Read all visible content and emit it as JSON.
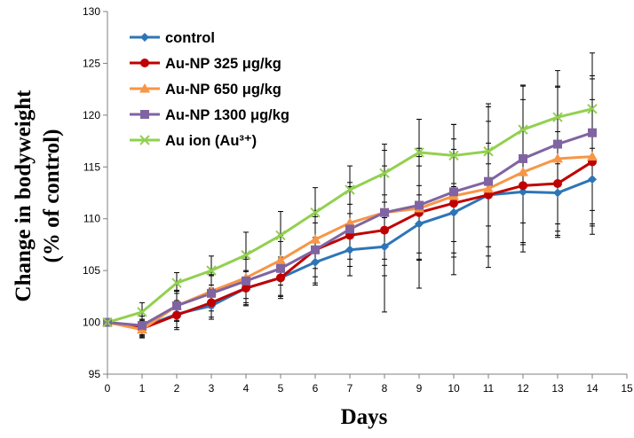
{
  "chart_data": {
    "type": "line",
    "xlabel": "Days",
    "ylabel_line1": "Change in bodyweight",
    "ylabel_line2": "(% of control)",
    "xlim": [
      0,
      15
    ],
    "ylim": [
      95,
      130
    ],
    "x_ticks": [
      "0",
      "1",
      "2",
      "3",
      "4",
      "5",
      "6",
      "7",
      "8",
      "9",
      "10",
      "11",
      "12",
      "13",
      "14",
      "15"
    ],
    "y_ticks": [
      "95",
      "100",
      "105",
      "110",
      "115",
      "120",
      "125",
      "130"
    ],
    "grid": false,
    "legend_position": "top-left",
    "x": [
      0,
      1,
      2,
      3,
      4,
      5,
      6,
      7,
      8,
      9,
      10,
      11,
      12,
      13,
      14
    ],
    "series": [
      {
        "name": "control",
        "color": "#2e75b6",
        "marker": "diamond",
        "values": [
          100.0,
          99.5,
          100.8,
          101.6,
          103.3,
          104.3,
          105.8,
          107.0,
          107.3,
          109.5,
          110.6,
          112.3,
          112.6,
          112.5,
          113.8
        ],
        "err_upper": [
          0,
          0.8,
          1.3,
          1.3,
          1.6,
          1.8,
          2.2,
          2.5,
          2.8,
          2.8,
          2.8,
          3.0,
          3.0,
          3.0,
          3.0
        ],
        "err_lower": [
          0,
          0.8,
          1.3,
          1.3,
          1.6,
          1.8,
          2.2,
          2.5,
          2.8,
          2.8,
          2.8,
          3.0,
          3.0,
          3.0,
          3.0
        ]
      },
      {
        "name": "Au-NP 325 μg/kg",
        "color": "#c00000",
        "marker": "circle",
        "values": [
          100.0,
          99.4,
          100.7,
          101.9,
          103.3,
          104.3,
          107.0,
          108.4,
          108.9,
          110.6,
          111.5,
          112.3,
          113.2,
          113.4,
          115.5
        ],
        "err_upper": [
          0,
          0.8,
          1.4,
          1.4,
          1.7,
          2.0,
          2.6,
          3.0,
          3.4,
          4.5,
          5.2,
          5.0,
          5.5,
          5.0,
          6.0
        ],
        "err_lower": [
          0,
          0.8,
          1.4,
          1.4,
          1.7,
          2.0,
          2.6,
          3.0,
          3.4,
          4.5,
          5.2,
          5.0,
          5.5,
          5.0,
          6.0
        ]
      },
      {
        "name": "Au-NP 650 μg/kg",
        "color": "#f79646",
        "marker": "triangle",
        "values": [
          100.0,
          99.3,
          101.6,
          103.0,
          104.3,
          106.0,
          108.0,
          109.6,
          110.6,
          111.0,
          112.2,
          112.9,
          114.5,
          115.8,
          116.0
        ],
        "err_upper": [
          0,
          0.8,
          1.4,
          1.6,
          2.0,
          2.4,
          2.8,
          3.5,
          4.5,
          5.0,
          5.5,
          6.5,
          7.0,
          7.0,
          7.5
        ],
        "err_lower": [
          0,
          0.8,
          1.4,
          1.6,
          2.0,
          2.4,
          2.8,
          3.5,
          4.5,
          5.0,
          5.5,
          6.5,
          7.0,
          7.0,
          7.5
        ]
      },
      {
        "name": "Au-NP 1300 μg/kg",
        "color": "#8064a2",
        "marker": "square",
        "values": [
          100.0,
          99.7,
          101.6,
          102.8,
          104.0,
          105.2,
          107.0,
          109.0,
          110.6,
          111.3,
          112.6,
          113.6,
          115.8,
          117.2,
          118.3
        ],
        "err_upper": [
          0,
          0.9,
          1.5,
          1.7,
          2.1,
          2.6,
          3.2,
          4.5,
          6.0,
          5.5,
          6.5,
          7.5,
          7.0,
          5.5,
          5.5
        ],
        "err_lower": [
          0,
          0.9,
          1.5,
          1.7,
          2.1,
          2.6,
          3.2,
          4.5,
          9.6,
          8.0,
          8.0,
          8.3,
          9.0,
          9.0,
          9.0
        ]
      },
      {
        "name": "Au ion  (Au³⁺)",
        "color": "#92d050",
        "marker": "x",
        "values": [
          100.0,
          101.0,
          103.8,
          105.0,
          106.5,
          108.4,
          110.6,
          112.8,
          114.4,
          116.4,
          116.1,
          116.5,
          118.6,
          119.8,
          120.6
        ],
        "err_upper": [
          0,
          0.9,
          1.0,
          1.4,
          2.2,
          2.3,
          2.4,
          2.3,
          2.8,
          3.2,
          3.0,
          4.3,
          4.3,
          4.5,
          5.4
        ],
        "err_lower": [
          0,
          0.9,
          1.0,
          1.4,
          2.2,
          2.3,
          2.4,
          2.3,
          2.8,
          3.2,
          3.0,
          4.3,
          4.3,
          4.5,
          5.4
        ]
      }
    ]
  }
}
